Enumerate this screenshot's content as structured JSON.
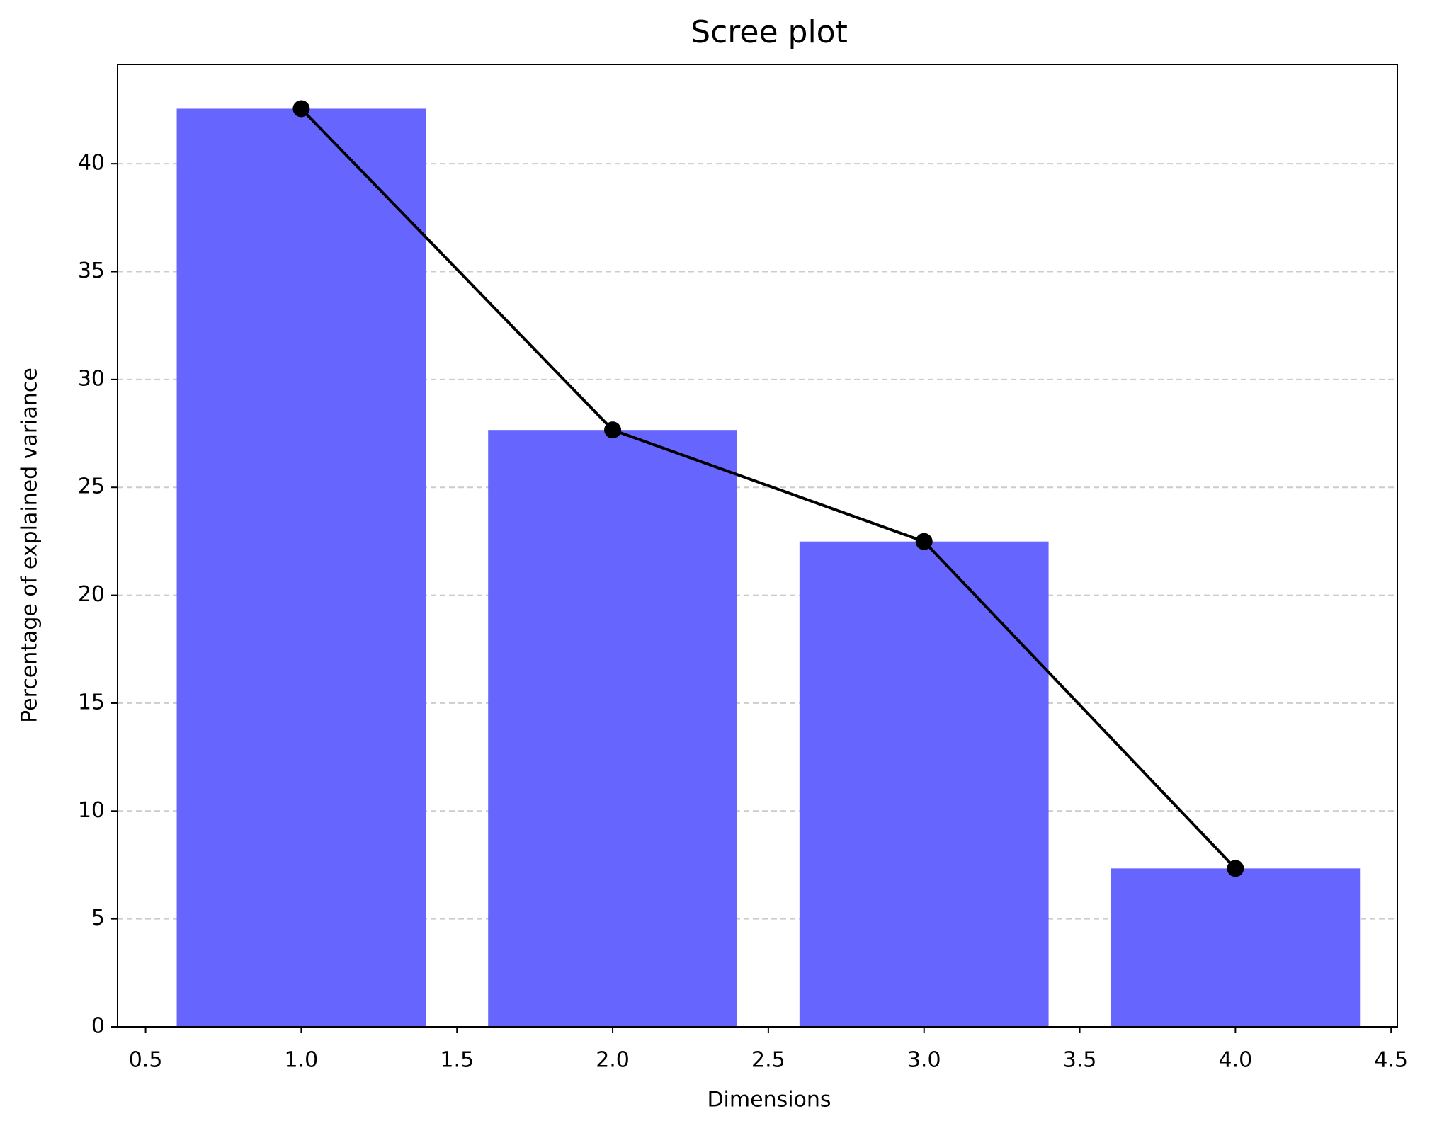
{
  "chart_data": {
    "type": "bar",
    "title": "Scree plot",
    "x_label": "Dimensions",
    "y_label": "Percentage of explained variance",
    "x": [
      1,
      2,
      3,
      4
    ],
    "values": [
      42.55,
      27.66,
      22.49,
      7.34
    ],
    "color": "#6666ff",
    "line_color": "#000000",
    "xlim": [
      0.41,
      4.52
    ],
    "xticks": [
      0.5,
      {
        "value": 1,
        "label": "1.0"
      },
      1.5,
      {
        "value": 2,
        "label": "2.0"
      },
      2.5,
      {
        "value": 3,
        "label": "3.0"
      },
      3.5,
      {
        "value": 4,
        "label": "4.0"
      },
      4.5
    ],
    "ylim": [
      0,
      44.6
    ],
    "yticks": [
      0,
      5,
      10,
      15,
      20,
      25,
      30,
      35,
      40
    ],
    "grid": "y"
  }
}
